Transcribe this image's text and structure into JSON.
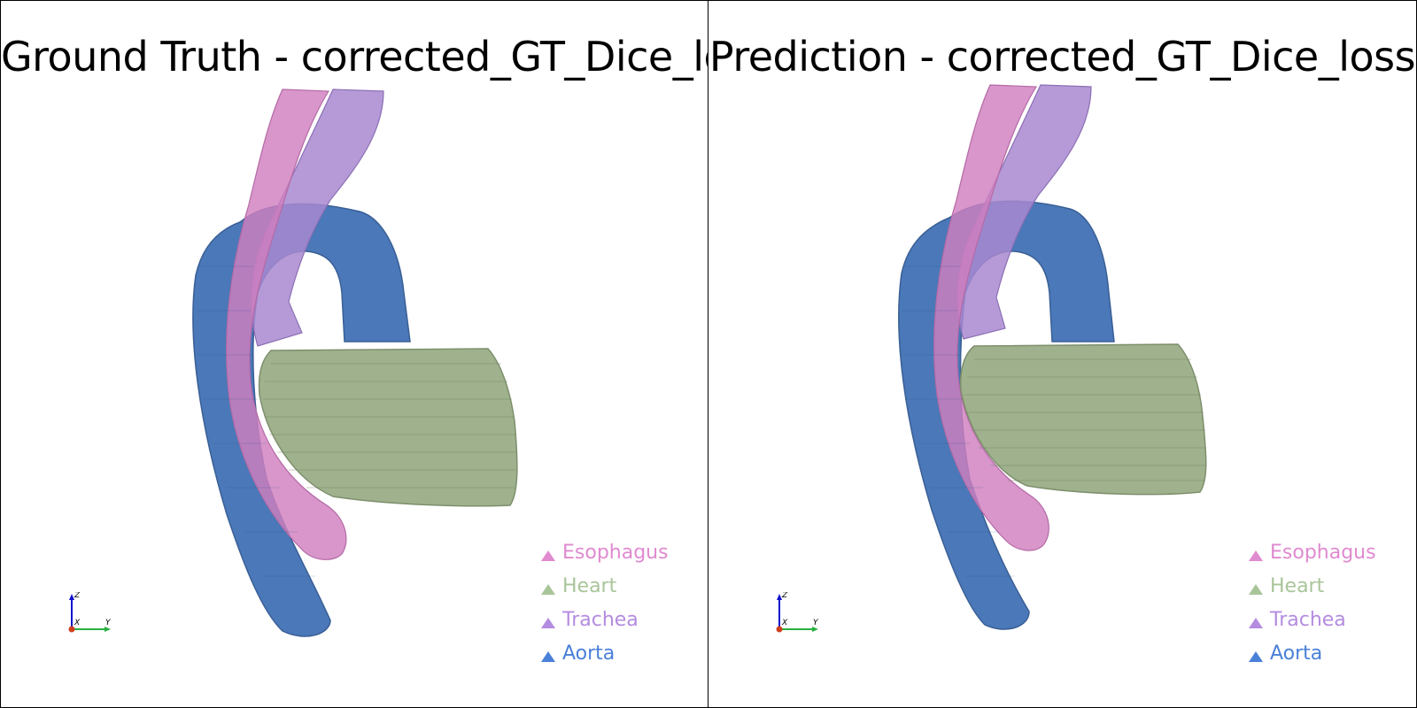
{
  "viewports": {
    "left": {
      "title": "Ground Truth - corrected_GT_Dice_loss"
    },
    "right": {
      "title": "Prediction - corrected_GT_Dice_loss"
    }
  },
  "legend": [
    {
      "label": "Esophagus",
      "color": "#e08ad0"
    },
    {
      "label": "Heart",
      "color": "#a8c59a"
    },
    {
      "label": "Trachea",
      "color": "#b48ce0"
    },
    {
      "label": "Aorta",
      "color": "#4a80d8"
    }
  ],
  "axes": {
    "z": "Z",
    "x": "X",
    "y": "Y"
  },
  "colors": {
    "aorta": "#4a78b8",
    "heart": "#9fb28d",
    "esophagus": "#d07fbf",
    "trachea": "#a888d0"
  }
}
